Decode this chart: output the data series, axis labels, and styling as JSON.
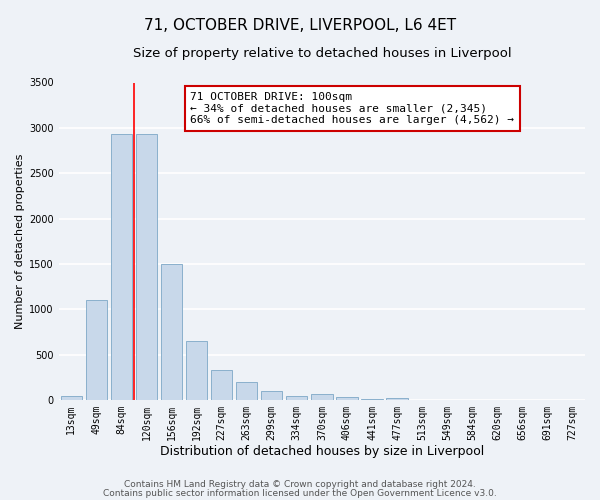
{
  "title": "71, OCTOBER DRIVE, LIVERPOOL, L6 4ET",
  "subtitle": "Size of property relative to detached houses in Liverpool",
  "xlabel": "Distribution of detached houses by size in Liverpool",
  "ylabel": "Number of detached properties",
  "categories": [
    "13sqm",
    "49sqm",
    "84sqm",
    "120sqm",
    "156sqm",
    "192sqm",
    "227sqm",
    "263sqm",
    "299sqm",
    "334sqm",
    "370sqm",
    "406sqm",
    "441sqm",
    "477sqm",
    "513sqm",
    "549sqm",
    "584sqm",
    "620sqm",
    "656sqm",
    "691sqm",
    "727sqm"
  ],
  "bar_heights": [
    50,
    1100,
    2930,
    2930,
    1500,
    650,
    330,
    200,
    100,
    50,
    70,
    35,
    15,
    20,
    5,
    5,
    5,
    5,
    5,
    5,
    5
  ],
  "bar_color": "#c8d8ea",
  "bar_edgecolor": "#8ab0cc",
  "bar_linewidth": 0.7,
  "vline_color": "red",
  "vline_linewidth": 1.2,
  "vline_x": 2.5,
  "annotation_line1": "71 OCTOBER DRIVE: 100sqm",
  "annotation_line2": "← 34% of detached houses are smaller (2,345)",
  "annotation_line3": "66% of semi-detached houses are larger (4,562) →",
  "annotation_box_edgecolor": "#cc0000",
  "annotation_box_facecolor": "white",
  "ylim": [
    0,
    3500
  ],
  "yticks": [
    0,
    500,
    1000,
    1500,
    2000,
    2500,
    3000,
    3500
  ],
  "background_color": "#eef2f7",
  "grid_color": "white",
  "footer_line1": "Contains HM Land Registry data © Crown copyright and database right 2024.",
  "footer_line2": "Contains public sector information licensed under the Open Government Licence v3.0.",
  "title_fontsize": 11,
  "subtitle_fontsize": 9.5,
  "xlabel_fontsize": 9,
  "ylabel_fontsize": 8,
  "tick_fontsize": 7,
  "annotation_fontsize": 8,
  "footer_fontsize": 6.5
}
